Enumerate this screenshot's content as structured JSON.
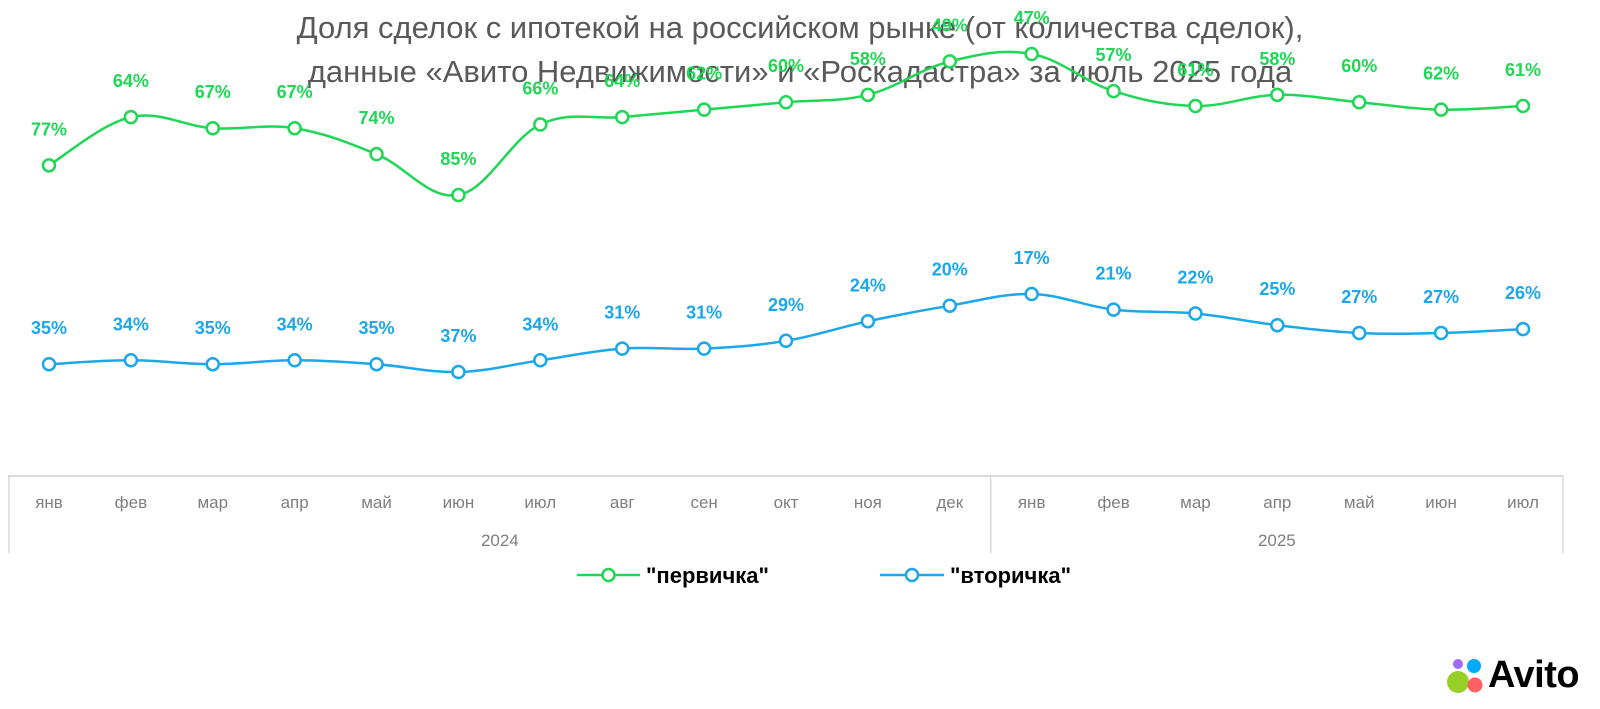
{
  "title": {
    "line1": "Доля сделок с ипотекой на российском рынке (от количества сделок),",
    "line2": "данные «Авито Недвижимости» и «Роскадастра» за июль 2025 года"
  },
  "brand": {
    "name": "Avito",
    "colors": [
      "#97cf26",
      "#00aaff",
      "#ff6163",
      "#a169f7"
    ]
  },
  "chart_data": {
    "type": "line",
    "categories": [
      "янв",
      "фев",
      "мар",
      "апр",
      "май",
      "июн",
      "июл",
      "авг",
      "сен",
      "окт",
      "ноя",
      "дек",
      "янв",
      "фев",
      "мар",
      "апр",
      "май",
      "июн",
      "июл"
    ],
    "groups": [
      {
        "label": "2024",
        "start": 0,
        "end": 11
      },
      {
        "label": "2025",
        "start": 12,
        "end": 18
      }
    ],
    "series": [
      {
        "name": "\"первичка\"",
        "color": "#1fd655",
        "values": [
          77,
          64,
          67,
          67,
          74,
          85,
          66,
          64,
          62,
          60,
          58,
          49,
          47,
          57,
          61,
          58,
          60,
          62,
          61
        ],
        "labels": [
          "77%",
          "64%",
          "67%",
          "67%",
          "74%",
          "85%",
          "66%",
          "64%",
          "62%",
          "60%",
          "58%",
          "49%",
          "47%",
          "57%",
          "61%",
          "58%",
          "60%",
          "62%",
          "61%"
        ]
      },
      {
        "name": "\"вторичка\"",
        "color": "#1aa7ec",
        "values": [
          35,
          34,
          35,
          34,
          35,
          37,
          34,
          31,
          31,
          29,
          24,
          20,
          17,
          21,
          22,
          25,
          27,
          27,
          26
        ],
        "labels": [
          "35%",
          "34%",
          "35%",
          "34%",
          "35%",
          "37%",
          "34%",
          "31%",
          "31%",
          "29%",
          "24%",
          "20%",
          "17%",
          "21%",
          "22%",
          "25%",
          "27%",
          "27%",
          "26%"
        ]
      }
    ],
    "legend": "bottom-center",
    "grid": false,
    "data_labels": true,
    "smooth": true
  }
}
